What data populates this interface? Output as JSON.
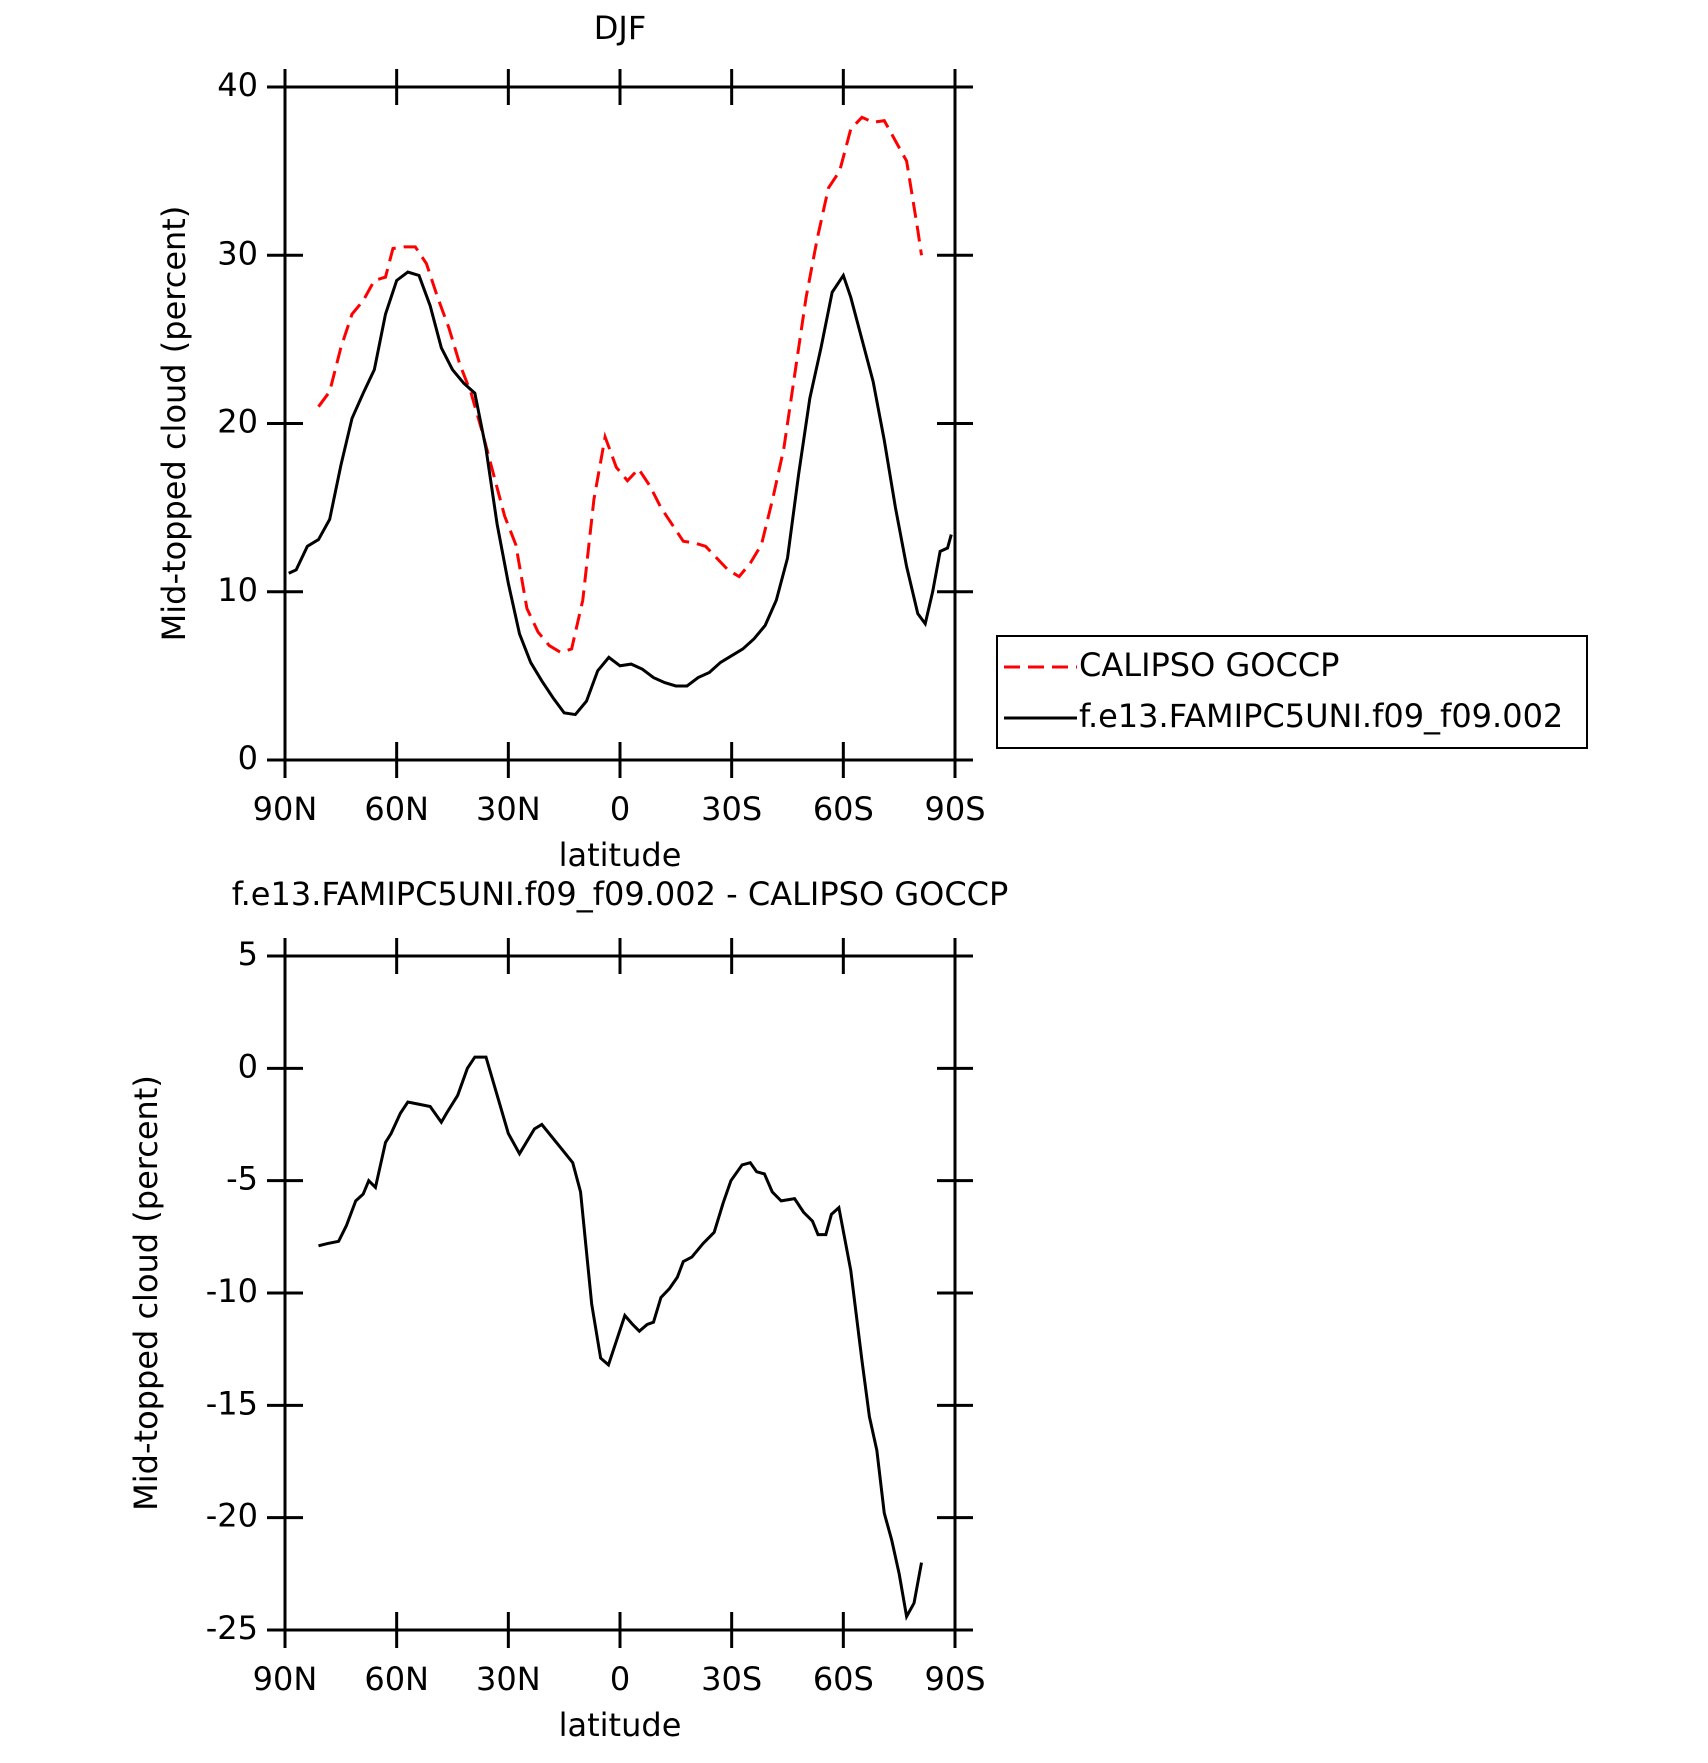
{
  "chart_data": [
    {
      "type": "line",
      "title": "DJF",
      "x_label": "latitude",
      "y_label": "Mid-topped cloud (percent)",
      "xlim": [
        90,
        -90
      ],
      "xticks": [
        {
          "value": 90,
          "label": "90N"
        },
        {
          "value": 60,
          "label": "60N"
        },
        {
          "value": 30,
          "label": "30N"
        },
        0,
        {
          "value": -30,
          "label": "30S"
        },
        {
          "value": -60,
          "label": "60S"
        },
        {
          "value": -90,
          "label": "90S"
        }
      ],
      "ylim": [
        0,
        40
      ],
      "yticks": [
        0,
        10,
        20,
        30,
        40
      ],
      "legend": "right",
      "series": [
        {
          "name": "CALIPSO GOCCP",
          "color": "#ff0000",
          "dash": true,
          "x": [
            81,
            78,
            75,
            72,
            69,
            66,
            63,
            61,
            58,
            55,
            52,
            49,
            46,
            43,
            40,
            37,
            34,
            31,
            28,
            25,
            22,
            19,
            16,
            13,
            10,
            7,
            4,
            1,
            -2,
            -5,
            -8,
            -11,
            -14,
            -17,
            -20,
            -23,
            -26,
            -29,
            -32,
            -35,
            -38,
            -41,
            -44,
            -47,
            -50,
            -53,
            -56,
            -59,
            -62,
            -65,
            -68,
            -71,
            -74,
            -77,
            -80,
            -81
          ],
          "values": [
            21.0,
            21.9,
            24.5,
            26.5,
            27.3,
            28.5,
            28.7,
            30.4,
            30.5,
            30.5,
            29.5,
            27.5,
            25.7,
            23.5,
            21.8,
            19.5,
            17.0,
            14.5,
            12.8,
            9.0,
            7.6,
            6.8,
            6.4,
            6.6,
            9.5,
            15.5,
            19.2,
            17.4,
            16.6,
            17.3,
            16.3,
            15.0,
            14.0,
            13.0,
            12.9,
            12.7,
            12.0,
            11.3,
            10.9,
            11.7,
            12.8,
            15.5,
            18.5,
            23.0,
            27.5,
            31.0,
            34.0,
            35.0,
            37.5,
            38.2,
            37.9,
            38.0,
            36.8,
            35.6,
            31.5,
            30.0
          ]
        },
        {
          "name": "f.e13.FAMIPC5UNI.f09_f09.002",
          "color": "#000000",
          "dash": false,
          "x": [
            89,
            87,
            84,
            81,
            78,
            75,
            72,
            69,
            66,
            63,
            60,
            57,
            54,
            51,
            48,
            45,
            42,
            39,
            36,
            33,
            30,
            27,
            24,
            21,
            18,
            15,
            12,
            9,
            6,
            3,
            0,
            -3,
            -6,
            -9,
            -12,
            -15,
            -18,
            -21,
            -24,
            -27,
            -30,
            -33,
            -36,
            -39,
            -42,
            -45,
            -48,
            -51,
            -54,
            -57,
            -60,
            -62,
            -65,
            -68,
            -71,
            -74,
            -77,
            -80,
            -82,
            -84,
            -86,
            -88,
            -89
          ],
          "values": [
            11.1,
            11.3,
            12.7,
            13.1,
            14.3,
            17.5,
            20.3,
            21.8,
            23.2,
            26.5,
            28.5,
            29.0,
            28.8,
            27.0,
            24.5,
            23.2,
            22.4,
            21.8,
            18.5,
            14.0,
            10.5,
            7.5,
            5.8,
            4.7,
            3.7,
            2.8,
            2.7,
            3.5,
            5.3,
            6.1,
            5.6,
            5.7,
            5.4,
            4.9,
            4.6,
            4.4,
            4.4,
            4.9,
            5.2,
            5.8,
            6.2,
            6.6,
            7.2,
            8.0,
            9.5,
            12.0,
            17.0,
            21.5,
            24.5,
            27.8,
            28.8,
            27.5,
            25.0,
            22.5,
            19.0,
            15.0,
            11.5,
            8.7,
            8.1,
            10.0,
            12.4,
            12.6,
            13.4
          ]
        }
      ]
    },
    {
      "type": "line",
      "title": "f.e13.FAMIPC5UNI.f09_f09.002 - CALIPSO GOCCP",
      "x_label": "latitude",
      "y_label": "Mid-topped cloud (percent)",
      "xlim": [
        90,
        -90
      ],
      "xticks": [
        {
          "value": 90,
          "label": "90N"
        },
        {
          "value": 60,
          "label": "60N"
        },
        {
          "value": 30,
          "label": "30N"
        },
        0,
        {
          "value": -30,
          "label": "30S"
        },
        {
          "value": -60,
          "label": "60S"
        },
        {
          "value": -90,
          "label": "90S"
        }
      ],
      "ylim": [
        -25,
        5
      ],
      "yticks": [
        -25,
        -20,
        -15,
        -10,
        -5,
        0,
        5
      ],
      "series": [
        {
          "color": "#000000",
          "x": [
            81,
            78.6,
            75.6,
            73.5,
            71,
            69,
            67.5,
            65.7,
            63,
            61.5,
            59,
            57,
            54,
            51,
            48,
            46.6,
            43.6,
            41,
            39,
            36,
            33,
            30,
            27,
            23,
            21,
            16.6,
            12.7,
            10.6,
            7.6,
            5.2,
            3.1,
            0.7,
            -1.3,
            -3.4,
            -5.2,
            -7.3,
            -9,
            -11,
            -13.3,
            -15.4,
            -17,
            -19.3,
            -22.3,
            -25.3,
            -27.7,
            -29.8,
            -32.8,
            -35,
            -36.7,
            -38.8,
            -40.9,
            -43.3,
            -46.9,
            -49.3,
            -51.7,
            -53.2,
            -55.3,
            -56.8,
            -58.8,
            -62,
            -65,
            -67,
            -69,
            -71,
            -73,
            -75,
            -77,
            -79,
            -81
          ],
          "values": [
            -7.9,
            -7.8,
            -7.7,
            -7.0,
            -5.9,
            -5.6,
            -5.0,
            -5.3,
            -3.3,
            -2.9,
            -2.0,
            -1.5,
            -1.6,
            -1.7,
            -2.4,
            -2.0,
            -1.2,
            0.0,
            0.5,
            0.5,
            -1.2,
            -2.9,
            -3.8,
            -2.7,
            -2.5,
            -3.4,
            -4.2,
            -5.5,
            -10.5,
            -12.9,
            -13.2,
            -12.0,
            -11.0,
            -11.4,
            -11.7,
            -11.4,
            -11.3,
            -10.2,
            -9.8,
            -9.3,
            -8.6,
            -8.4,
            -7.8,
            -7.3,
            -6.0,
            -5.0,
            -4.3,
            -4.2,
            -4.6,
            -4.7,
            -5.5,
            -5.9,
            -5.8,
            -6.4,
            -6.8,
            -7.4,
            -7.4,
            -6.5,
            -6.2,
            -9.0,
            -13.0,
            -15.5,
            -17.0,
            -19.8,
            -21.0,
            -22.5,
            -24.4,
            -23.8,
            -22.0
          ]
        }
      ]
    }
  ]
}
